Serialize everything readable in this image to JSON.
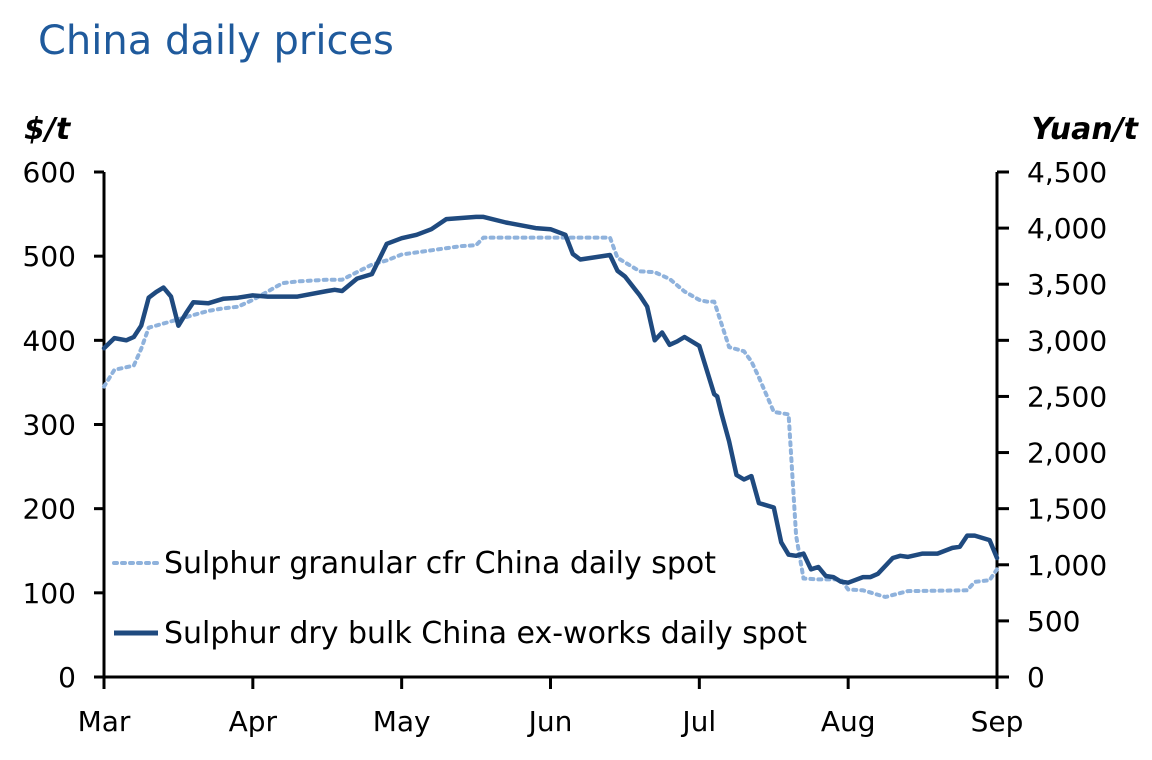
{
  "page_title": "China daily prices",
  "chart_data": {
    "type": "line",
    "title": "China daily prices",
    "ylabel_left": "$/t",
    "ylabel_right": "Yuan/t",
    "ylim_left": [
      0,
      600
    ],
    "ylim_right": [
      0,
      4500
    ],
    "yticks_left": [
      "0",
      "100",
      "200",
      "300",
      "400",
      "500",
      "600"
    ],
    "yticks_right": [
      "0",
      "500",
      "1,000",
      "1,500",
      "2,000",
      "2,500",
      "3,000",
      "3,500",
      "4,000",
      "4,500"
    ],
    "xlim": [
      0,
      6
    ],
    "x_ticks": [
      {
        "label": "Mar",
        "x": 0
      },
      {
        "label": "Apr",
        "x": 1
      },
      {
        "label": "May",
        "x": 2
      },
      {
        "label": "Jun",
        "x": 3
      },
      {
        "label": "Jul",
        "x": 4
      },
      {
        "label": "Aug",
        "x": 5
      },
      {
        "label": "Sep",
        "x": 6
      }
    ],
    "legend_position": "lower-left",
    "series": [
      {
        "name": "Sulphur granular cfr China daily spot",
        "axis": "left (US$/t)",
        "style": "dotted",
        "color": "#8fb2dc",
        "x": [
          0,
          0.07,
          0.2,
          0.25,
          0.3,
          0.4,
          0.5,
          0.6,
          0.7,
          0.8,
          0.9,
          1.0,
          1.1,
          1.2,
          1.3,
          1.5,
          1.6,
          1.8,
          1.9,
          2.0,
          2.2,
          2.4,
          2.5,
          2.55,
          2.8,
          3.0,
          3.2,
          3.4,
          3.45,
          3.6,
          3.7,
          3.8,
          3.9,
          4.0,
          4.05,
          4.1,
          4.2,
          4.3,
          4.35,
          4.4,
          4.5,
          4.6,
          4.65,
          4.7,
          4.8,
          4.95,
          5.0,
          5.1,
          5.25,
          5.4,
          5.8,
          5.85,
          5.95,
          6.0
        ],
        "y": [
          345,
          365,
          370,
          390,
          415,
          420,
          425,
          430,
          435,
          438,
          440,
          448,
          458,
          468,
          470,
          472,
          472,
          490,
          495,
          502,
          507,
          512,
          513,
          522,
          522,
          522,
          522,
          522,
          498,
          482,
          481,
          473,
          458,
          448,
          446,
          446,
          392,
          387,
          375,
          356,
          315,
          312,
          168,
          117,
          116,
          116,
          104,
          103,
          95,
          102,
          103,
          113,
          115,
          128
        ]
      },
      {
        "name": "Sulphur dry bulk China ex-works daily spot",
        "axis": "right (Yuan/t)",
        "style": "solid",
        "color": "#1f4a7f",
        "x": [
          0,
          0.07,
          0.15,
          0.2,
          0.25,
          0.3,
          0.35,
          0.4,
          0.45,
          0.5,
          0.55,
          0.6,
          0.7,
          0.8,
          0.9,
          1.0,
          1.1,
          1.3,
          1.5,
          1.55,
          1.6,
          1.7,
          1.8,
          1.9,
          2.0,
          2.1,
          2.2,
          2.3,
          2.5,
          2.55,
          2.7,
          2.9,
          3.0,
          3.1,
          3.15,
          3.2,
          3.4,
          3.45,
          3.5,
          3.6,
          3.65,
          3.7,
          3.75,
          3.8,
          3.85,
          3.9,
          4.0,
          4.1,
          4.12,
          4.15,
          4.2,
          4.25,
          4.3,
          4.35,
          4.4,
          4.5,
          4.55,
          4.6,
          4.65,
          4.7,
          4.75,
          4.8,
          4.85,
          4.9,
          4.95,
          5.0,
          5.1,
          5.15,
          5.2,
          5.3,
          5.35,
          5.4,
          5.5,
          5.6,
          5.7,
          5.75,
          5.8,
          5.85,
          5.95,
          6.0
        ],
        "y": [
          2930,
          3020,
          3000,
          3030,
          3130,
          3380,
          3430,
          3470,
          3390,
          3130,
          3240,
          3340,
          3330,
          3370,
          3380,
          3400,
          3390,
          3390,
          3440,
          3450,
          3440,
          3550,
          3590,
          3860,
          3910,
          3940,
          3990,
          4080,
          4100,
          4100,
          4050,
          4000,
          3990,
          3940,
          3770,
          3720,
          3760,
          3620,
          3570,
          3400,
          3300,
          3000,
          3070,
          2960,
          2990,
          3030,
          2950,
          2520,
          2500,
          2340,
          2100,
          1800,
          1760,
          1790,
          1550,
          1510,
          1200,
          1090,
          1080,
          1100,
          960,
          980,
          900,
          890,
          850,
          840,
          890,
          890,
          920,
          1060,
          1080,
          1070,
          1100,
          1100,
          1150,
          1160,
          1260,
          1260,
          1220,
          1060
        ]
      }
    ]
  }
}
